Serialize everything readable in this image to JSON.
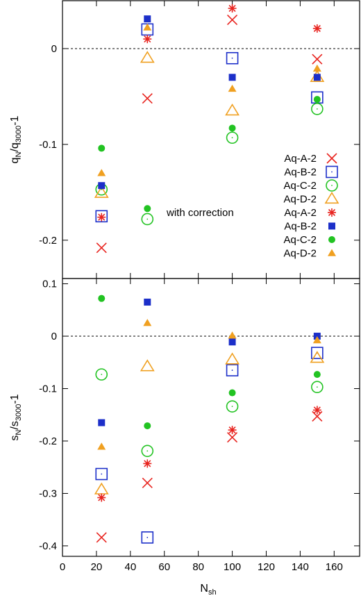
{
  "chart_data": [
    {
      "type": "scatter",
      "panel": "top",
      "ylabel": "q_N/q_3000-1",
      "ylabel_main": "q",
      "ylabel_sub1": "N",
      "ylabel_slash": "/q",
      "ylabel_sub2": "3000",
      "ylabel_tail": "-1",
      "xlim": [
        0,
        175
      ],
      "ylim": [
        -0.24,
        0.05
      ],
      "yticks": [
        0,
        -0.1,
        -0.2
      ],
      "ytick_labels": [
        "0",
        "-0.1",
        "-0.2"
      ],
      "reference_line": 0,
      "legend": {
        "position": "right",
        "entries": [
          "Aq-A-2",
          "Aq-B-2",
          "Aq-C-2",
          "Aq-D-2",
          "Aq-A-2",
          "Aq-B-2",
          "Aq-C-2",
          "Aq-D-2"
        ],
        "correction_label": "with correction"
      },
      "series": [
        {
          "name": "Aq-A-2",
          "marker": "x",
          "color": "#e8231e",
          "points": [
            [
              23,
              -0.208
            ],
            [
              50,
              -0.052
            ],
            [
              100,
              0.03
            ],
            [
              150,
              -0.011
            ]
          ]
        },
        {
          "name": "Aq-B-2",
          "marker": "open-square",
          "color": "#1c2fc9",
          "points": [
            [
              23,
              -0.175
            ],
            [
              50,
              0.02
            ],
            [
              100,
              -0.01
            ],
            [
              150,
              -0.051
            ]
          ]
        },
        {
          "name": "Aq-C-2",
          "marker": "open-circle",
          "color": "#22c322",
          "points": [
            [
              23,
              -0.147
            ],
            [
              50,
              -0.178
            ],
            [
              100,
              -0.093
            ],
            [
              150,
              -0.063
            ]
          ]
        },
        {
          "name": "Aq-D-2",
          "marker": "open-triangle",
          "color": "#f0a020",
          "points": [
            [
              23,
              -0.151
            ],
            [
              50,
              -0.01
            ],
            [
              100,
              -0.065
            ],
            [
              150,
              -0.03
            ]
          ]
        },
        {
          "name": "Aq-A-2",
          "marker": "star",
          "color": "#e8231e",
          "points": [
            [
              23,
              -0.176
            ],
            [
              50,
              0.01
            ],
            [
              100,
              0.042
            ],
            [
              150,
              0.021
            ]
          ]
        },
        {
          "name": "Aq-B-2",
          "marker": "filled-square",
          "color": "#1c2fc9",
          "points": [
            [
              23,
              -0.143
            ],
            [
              50,
              0.031
            ],
            [
              100,
              -0.03
            ],
            [
              150,
              -0.03
            ]
          ]
        },
        {
          "name": "Aq-C-2",
          "marker": "filled-circle",
          "color": "#22c322",
          "points": [
            [
              23,
              -0.104
            ],
            [
              50,
              -0.167
            ],
            [
              100,
              -0.083
            ],
            [
              150,
              -0.053
            ]
          ]
        },
        {
          "name": "Aq-D-2",
          "marker": "filled-triangle",
          "color": "#f0a020",
          "points": [
            [
              23,
              -0.13
            ],
            [
              50,
              0.022
            ],
            [
              100,
              -0.042
            ],
            [
              150,
              -0.021
            ]
          ]
        }
      ]
    },
    {
      "type": "scatter",
      "panel": "bottom",
      "xlabel": "N_sh",
      "xlabel_main": "N",
      "xlabel_sub": "sh",
      "ylabel": "s_N/s_3000-1",
      "ylabel_main": "s",
      "ylabel_sub1": "N",
      "ylabel_slash": "/s",
      "ylabel_sub2": "3000",
      "ylabel_tail": "-1",
      "xlim": [
        0,
        175
      ],
      "ylim": [
        -0.42,
        0.11
      ],
      "xticks": [
        0,
        20,
        40,
        60,
        80,
        100,
        120,
        140,
        160
      ],
      "xtick_labels": [
        "0",
        "20",
        "40",
        "60",
        "80",
        "100",
        "120",
        "140",
        "160"
      ],
      "yticks": [
        0.1,
        0,
        -0.1,
        -0.2,
        -0.3,
        -0.4
      ],
      "ytick_labels": [
        "0.1",
        "0",
        "-0.1",
        "-0.2",
        "-0.3",
        "-0.4"
      ],
      "reference_line": 0,
      "series": [
        {
          "name": "Aq-A-2",
          "marker": "x",
          "color": "#e8231e",
          "points": [
            [
              23,
              -0.384
            ],
            [
              50,
              -0.28
            ],
            [
              100,
              -0.193
            ],
            [
              150,
              -0.153
            ]
          ]
        },
        {
          "name": "Aq-B-2",
          "marker": "open-square",
          "color": "#1c2fc9",
          "points": [
            [
              23,
              -0.263
            ],
            [
              50,
              -0.384
            ],
            [
              100,
              -0.065
            ],
            [
              150,
              -0.032
            ]
          ]
        },
        {
          "name": "Aq-C-2",
          "marker": "open-circle",
          "color": "#22c322",
          "points": [
            [
              23,
              -0.073
            ],
            [
              50,
              -0.219
            ],
            [
              100,
              -0.134
            ],
            [
              150,
              -0.097
            ]
          ]
        },
        {
          "name": "Aq-D-2",
          "marker": "open-triangle",
          "color": "#f0a020",
          "points": [
            [
              23,
              -0.293
            ],
            [
              50,
              -0.058
            ],
            [
              100,
              -0.045
            ],
            [
              150,
              -0.042
            ]
          ]
        },
        {
          "name": "Aq-A-2",
          "marker": "star",
          "color": "#e8231e",
          "points": [
            [
              23,
              -0.308
            ],
            [
              50,
              -0.243
            ],
            [
              100,
              -0.179
            ],
            [
              150,
              -0.141
            ]
          ]
        },
        {
          "name": "Aq-B-2",
          "marker": "filled-square",
          "color": "#1c2fc9",
          "points": [
            [
              23,
              -0.165
            ],
            [
              50,
              0.065
            ],
            [
              100,
              -0.011
            ],
            [
              150,
              0.0
            ]
          ]
        },
        {
          "name": "Aq-C-2",
          "marker": "filled-circle",
          "color": "#22c322",
          "points": [
            [
              23,
              0.072
            ],
            [
              50,
              -0.171
            ],
            [
              100,
              -0.108
            ],
            [
              150,
              -0.073
            ]
          ]
        },
        {
          "name": "Aq-D-2",
          "marker": "filled-triangle",
          "color": "#f0a020",
          "points": [
            [
              23,
              -0.211
            ],
            [
              50,
              0.025
            ],
            [
              100,
              0.001
            ],
            [
              150,
              -0.008
            ]
          ]
        }
      ]
    }
  ]
}
